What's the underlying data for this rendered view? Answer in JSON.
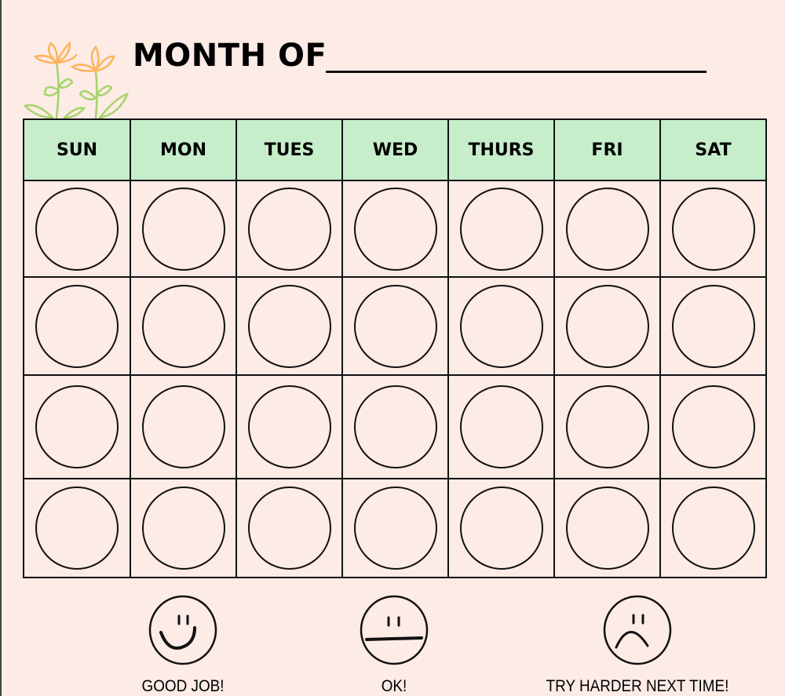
{
  "title": "MONTH OF",
  "days": [
    "SUN",
    "MON",
    "TUES",
    "WED",
    "THURS",
    "FRI",
    "SAT"
  ],
  "weeks": 4,
  "colors": {
    "background": "#fdebe6",
    "header": "#c6eecb",
    "flower": "#ffb35c",
    "stem": "#a6d36a"
  },
  "legend": [
    {
      "icon": "happy-face-icon",
      "label": "GOOD JOB!"
    },
    {
      "icon": "neutral-face-icon",
      "label": "OK!"
    },
    {
      "icon": "sad-face-icon",
      "label": "TRY HARDER NEXT TIME!"
    }
  ]
}
